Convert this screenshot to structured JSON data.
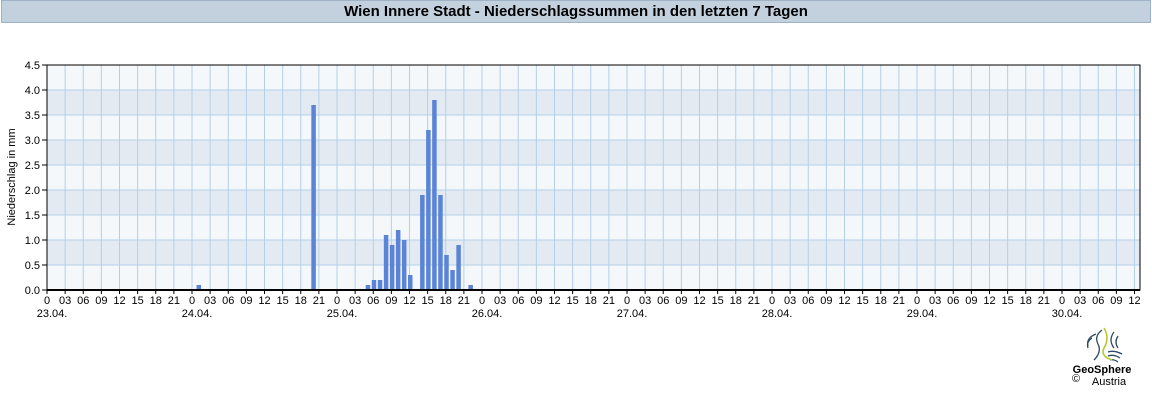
{
  "chart_data": {
    "type": "bar",
    "title": "Wien Innere Stadt - Niederschlagssummen in den letzten 7 Tagen",
    "ylabel": "Niederschlag in mm",
    "xlabel": "",
    "ylim": [
      0,
      4.5
    ],
    "yticks": [
      "0.0",
      "0.5",
      "1.0",
      "1.5",
      "2.0",
      "2.5",
      "3.0",
      "3.5",
      "4.0",
      "4.5"
    ],
    "xlim": [
      "23.04. 00",
      "30.04. 13"
    ],
    "x_hour_ticks": [
      "0",
      "03",
      "06",
      "09",
      "12",
      "15",
      "18",
      "21"
    ],
    "day_labels": [
      "23.04.",
      "24.04.",
      "25.04.",
      "26.04.",
      "27.04.",
      "28.04.",
      "29.04.",
      "30.04."
    ],
    "grid": true,
    "bar_color": "#5b84d6",
    "points": [
      {
        "day": "24.04.",
        "hour": 1,
        "value": 0.1
      },
      {
        "day": "24.04.",
        "hour": 20,
        "value": 3.7
      },
      {
        "day": "25.04.",
        "hour": 5,
        "value": 0.1
      },
      {
        "day": "25.04.",
        "hour": 6,
        "value": 0.2
      },
      {
        "day": "25.04.",
        "hour": 7,
        "value": 0.2
      },
      {
        "day": "25.04.",
        "hour": 8,
        "value": 1.1
      },
      {
        "day": "25.04.",
        "hour": 9,
        "value": 0.9
      },
      {
        "day": "25.04.",
        "hour": 10,
        "value": 1.2
      },
      {
        "day": "25.04.",
        "hour": 11,
        "value": 1.0
      },
      {
        "day": "25.04.",
        "hour": 12,
        "value": 0.3
      },
      {
        "day": "25.04.",
        "hour": 14,
        "value": 1.9
      },
      {
        "day": "25.04.",
        "hour": 15,
        "value": 3.2
      },
      {
        "day": "25.04.",
        "hour": 16,
        "value": 3.8
      },
      {
        "day": "25.04.",
        "hour": 17,
        "value": 1.9
      },
      {
        "day": "25.04.",
        "hour": 18,
        "value": 0.7
      },
      {
        "day": "25.04.",
        "hour": 19,
        "value": 0.4
      },
      {
        "day": "25.04.",
        "hour": 20,
        "value": 0.9
      },
      {
        "day": "25.04.",
        "hour": 22,
        "value": 0.1
      }
    ]
  },
  "logo": {
    "name_line1": "GeoSphere",
    "name_line2": "Austria",
    "copyright": "©"
  }
}
